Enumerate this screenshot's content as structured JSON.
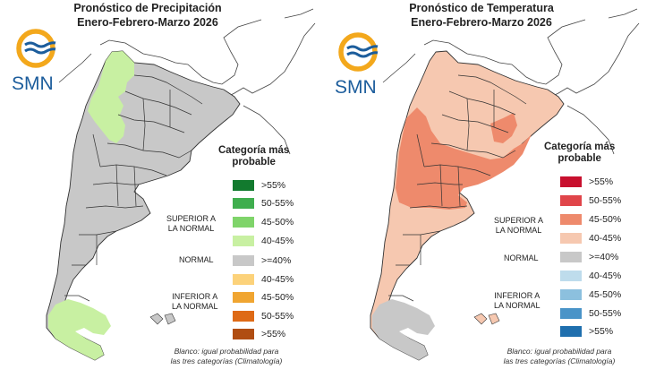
{
  "panels": [
    {
      "id": "precip",
      "title_line1": "Pronóstico de Precipitación",
      "title_line2": "Enero-Febrero-Marzo 2026",
      "logo_text": "SMN",
      "legend_title_line1": "Categoría más",
      "legend_title_line2": "probable",
      "groups": {
        "superior_line1": "SUPERIOR A",
        "superior_line2": "LA NORMAL",
        "normal": "NORMAL",
        "inferior_line1": "INFERIOR A",
        "inferior_line2": "LA NORMAL"
      },
      "legend_items": [
        {
          "label": ">55%",
          "color": "#127a2e"
        },
        {
          "label": "50-55%",
          "color": "#3fae4e"
        },
        {
          "label": "45-50%",
          "color": "#7fd46a"
        },
        {
          "label": "40-45%",
          "color": "#c8f0a2"
        },
        {
          "label": ">=40%",
          "color": "#c8c8c8"
        },
        {
          "label": "40-45%",
          "color": "#fcd27a"
        },
        {
          "label": "45-50%",
          "color": "#f0a531"
        },
        {
          "label": "50-55%",
          "color": "#de6a16"
        },
        {
          "label": ">55%",
          "color": "#b04d12"
        }
      ],
      "footnote_line1": "Blanco: igual probabilidad para",
      "footnote_line2": "las tres categorías (Climatología)"
    },
    {
      "id": "temp",
      "title_line1": "Pronóstico de Temperatura",
      "title_line2": "Enero-Febrero-Marzo 2026",
      "logo_text": "SMN",
      "legend_title_line1": "Categoría más",
      "legend_title_line2": "probable",
      "groups": {
        "superior_line1": "SUPERIOR A",
        "superior_line2": "LA NORMAL",
        "normal": "NORMAL",
        "inferior_line1": "INFERIOR A",
        "inferior_line2": "LA NORMAL"
      },
      "legend_items": [
        {
          "label": ">55%",
          "color": "#c8102e"
        },
        {
          "label": "50-55%",
          "color": "#e0454a"
        },
        {
          "label": "45-50%",
          "color": "#ee8a6c"
        },
        {
          "label": "40-45%",
          "color": "#f6c8b0"
        },
        {
          "label": ">=40%",
          "color": "#c8c8c8"
        },
        {
          "label": "40-45%",
          "color": "#bedcec"
        },
        {
          "label": "45-50%",
          "color": "#8cc0de"
        },
        {
          "label": "50-55%",
          "color": "#4a94c8"
        },
        {
          "label": ">55%",
          "color": "#1f6fae"
        }
      ],
      "footnote_line1": "Blanco: igual probabilidad para",
      "footnote_line2": "las tres categorías (Climatología)"
    }
  ],
  "colors": {
    "normal_gray": "#c8c8c8",
    "precip_above_40_45": "#c8f0a2",
    "temp_above_40_45": "#f6c8b0",
    "temp_above_45_50": "#ee8a6c",
    "logo_orange": "#f3a81c",
    "logo_blue": "#1c5d9c"
  }
}
